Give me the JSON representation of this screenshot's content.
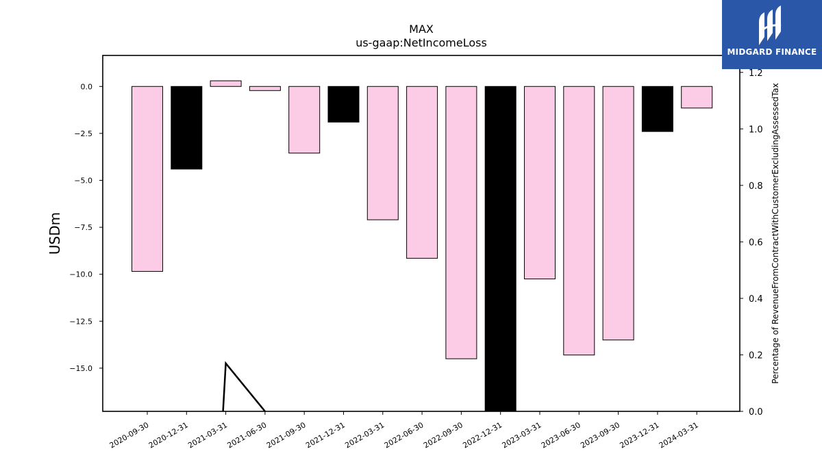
{
  "chart_data": {
    "type": "bar",
    "title": "MAX",
    "subtitle": "us-gaap:NetIncomeLoss",
    "ylabel": "USDm",
    "y2label": "Percentage of RevenueFromContractWithCustomerExcludingAssessedTax",
    "ylim": [
      -17.3,
      1.65
    ],
    "y2lim": [
      0,
      1.26
    ],
    "yticks": [
      "0.0",
      "−2.5",
      "−5.0",
      "−7.5",
      "−10.0",
      "−12.5",
      "−15.0"
    ],
    "ytick_values": [
      0,
      -2.5,
      -5,
      -7.5,
      -10,
      -12.5,
      -15
    ],
    "y2ticks": [
      "0.0",
      "0.2",
      "0.4",
      "0.6",
      "0.8",
      "1.0",
      "1.2"
    ],
    "y2tick_values": [
      0,
      0.2,
      0.4,
      0.6,
      0.8,
      1.0,
      1.2
    ],
    "categories": [
      "2020-09-30",
      "2020-12-31",
      "2021-03-31",
      "2021-06-30",
      "2021-09-30",
      "2021-12-31",
      "2022-03-31",
      "2022-06-30",
      "2022-09-30",
      "2022-12-31",
      "2023-03-31",
      "2023-06-30",
      "2023-09-30",
      "2023-12-31",
      "2024-03-31"
    ],
    "values": [
      -9.85,
      -4.4,
      0.3,
      -0.22,
      -3.55,
      -1.9,
      -7.1,
      -9.15,
      -14.5,
      -17.3,
      -10.25,
      -14.3,
      -13.5,
      -2.4,
      -1.15
    ],
    "bar_colors": [
      "#fccbe5",
      "#000000",
      "#fccbe5",
      "#fccbe5",
      "#fccbe5",
      "#000000",
      "#fccbe5",
      "#fccbe5",
      "#fccbe5",
      "#000000",
      "#fccbe5",
      "#fccbe5",
      "#fccbe5",
      "#000000",
      "#fccbe5"
    ],
    "line_series": {
      "x": [
        "2021-03-31",
        "2021-03-31",
        "2021-06-30"
      ],
      "values": [
        0,
        0.17,
        0
      ]
    }
  },
  "logo": {
    "text": "MIDGARD FINANCE"
  }
}
